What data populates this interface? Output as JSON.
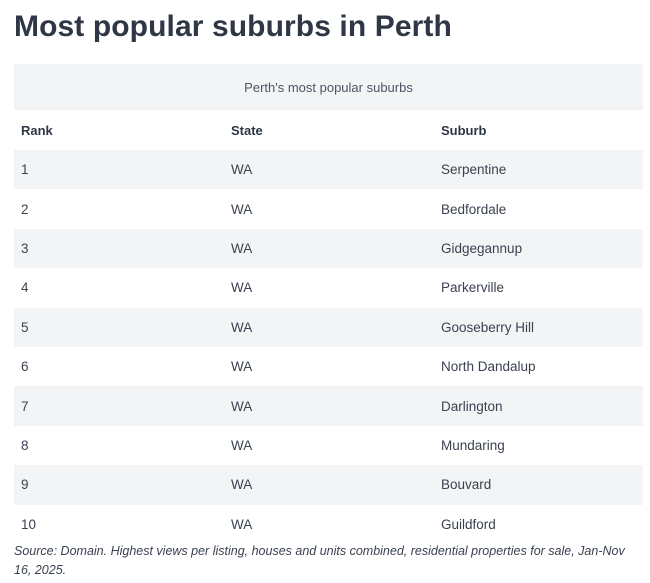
{
  "page": {
    "title": "Most popular suburbs in Perth"
  },
  "table": {
    "caption": "Perth's most popular suburbs",
    "headers": {
      "rank": "Rank",
      "state": "State",
      "suburb": "Suburb"
    },
    "rows": [
      {
        "rank": "1",
        "state": "WA",
        "suburb": "Serpentine"
      },
      {
        "rank": "2",
        "state": "WA",
        "suburb": "Bedfordale"
      },
      {
        "rank": "3",
        "state": "WA",
        "suburb": "Gidgegannup"
      },
      {
        "rank": "4",
        "state": "WA",
        "suburb": "Parkerville"
      },
      {
        "rank": "5",
        "state": "WA",
        "suburb": "Gooseberry Hill"
      },
      {
        "rank": "6",
        "state": "WA",
        "suburb": "North Dandalup"
      },
      {
        "rank": "7",
        "state": "WA",
        "suburb": "Darlington"
      },
      {
        "rank": "8",
        "state": "WA",
        "suburb": "Mundaring"
      },
      {
        "rank": "9",
        "state": "WA",
        "suburb": "Bouvard"
      },
      {
        "rank": "10",
        "state": "WA",
        "suburb": "Guildford"
      }
    ]
  },
  "footer": {
    "source": "Source: Domain. Highest views per listing, houses and units combined, residential properties for sale, Jan-Nov 16, 2025."
  },
  "colors": {
    "title": "#2f3747",
    "stripe": "#f3f4f6",
    "text": "#3a4250"
  }
}
